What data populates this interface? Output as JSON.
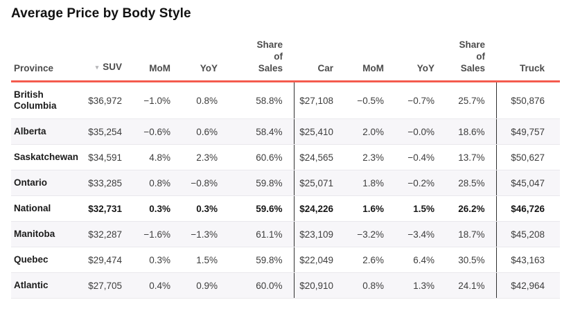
{
  "title": "Average Price by Body Style",
  "colors": {
    "accent_rule": "#f45b4e",
    "group_divider": "#2f2f2f",
    "zebra_stripe": "#f7f6f9"
  },
  "sort": {
    "column": "SUV",
    "direction": "desc",
    "icon": "sort-desc-icon"
  },
  "chart_data": {
    "type": "table",
    "title": "Average Price by Body Style",
    "columns": [
      "Province",
      "SUV",
      "MoM",
      "YoY",
      "Share of Sales",
      "Car",
      "MoM",
      "YoY",
      "Share of Sales",
      "Truck"
    ],
    "sorted_by": {
      "column": "SUV",
      "direction": "desc"
    },
    "rows": [
      {
        "label": "British Columbia",
        "emphasis": false,
        "values": [
          "$36,972",
          "−1.0%",
          "0.8%",
          "58.8%",
          "$27,108",
          "−0.5%",
          "−0.7%",
          "25.7%",
          "$50,876"
        ]
      },
      {
        "label": "Alberta",
        "emphasis": false,
        "values": [
          "$35,254",
          "−0.6%",
          "0.6%",
          "58.4%",
          "$25,410",
          "2.0%",
          "−0.0%",
          "18.6%",
          "$49,757"
        ]
      },
      {
        "label": "Saskatchewan",
        "emphasis": false,
        "values": [
          "$34,591",
          "4.8%",
          "2.3%",
          "60.6%",
          "$24,565",
          "2.3%",
          "−0.4%",
          "13.7%",
          "$50,627"
        ]
      },
      {
        "label": "Ontario",
        "emphasis": false,
        "values": [
          "$33,285",
          "0.8%",
          "−0.8%",
          "59.8%",
          "$25,071",
          "1.8%",
          "−0.2%",
          "28.5%",
          "$45,047"
        ]
      },
      {
        "label": "National",
        "emphasis": true,
        "values": [
          "$32,731",
          "0.3%",
          "0.3%",
          "59.6%",
          "$24,226",
          "1.6%",
          "1.5%",
          "26.2%",
          "$46,726"
        ]
      },
      {
        "label": "Manitoba",
        "emphasis": false,
        "values": [
          "$32,287",
          "−1.6%",
          "−1.3%",
          "61.1%",
          "$23,109",
          "−3.2%",
          "−3.4%",
          "18.7%",
          "$45,208"
        ]
      },
      {
        "label": "Quebec",
        "emphasis": false,
        "values": [
          "$29,474",
          "0.3%",
          "1.5%",
          "59.8%",
          "$22,049",
          "2.6%",
          "6.4%",
          "30.5%",
          "$43,163"
        ]
      },
      {
        "label": "Atlantic",
        "emphasis": false,
        "values": [
          "$27,705",
          "0.4%",
          "0.9%",
          "60.0%",
          "$20,910",
          "0.8%",
          "1.3%",
          "24.1%",
          "$42,964"
        ]
      }
    ]
  },
  "icons": {
    "sort_desc": "▼"
  }
}
